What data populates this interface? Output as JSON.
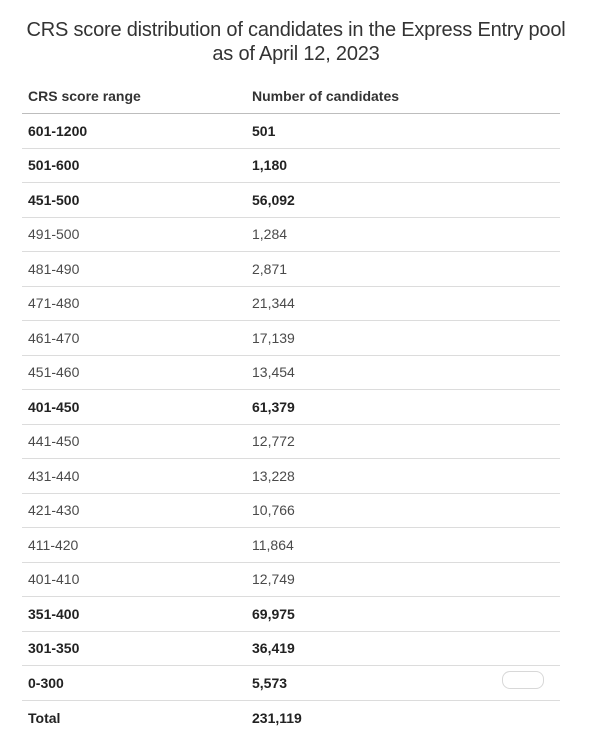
{
  "title": "CRS score distribution of candidates in the Express Entry pool as of April 12, 2023",
  "table": {
    "headers": {
      "range": "CRS score range",
      "count": "Number of candidates"
    },
    "rows": [
      {
        "range": "601-1200",
        "count": "501",
        "bold": true
      },
      {
        "range": "501-600",
        "count": "1,180",
        "bold": true
      },
      {
        "range": "451-500",
        "count": "56,092",
        "bold": true
      },
      {
        "range": "491-500",
        "count": "1,284",
        "bold": false
      },
      {
        "range": "481-490",
        "count": "2,871",
        "bold": false
      },
      {
        "range": "471-480",
        "count": "21,344",
        "bold": false
      },
      {
        "range": "461-470",
        "count": "17,139",
        "bold": false
      },
      {
        "range": "451-460",
        "count": "13,454",
        "bold": false
      },
      {
        "range": "401-450",
        "count": "61,379",
        "bold": true
      },
      {
        "range": "441-450",
        "count": "12,772",
        "bold": false
      },
      {
        "range": "431-440",
        "count": "13,228",
        "bold": false
      },
      {
        "range": "421-430",
        "count": "10,766",
        "bold": false
      },
      {
        "range": "411-420",
        "count": "11,864",
        "bold": false
      },
      {
        "range": "401-410",
        "count": "12,749",
        "bold": false
      },
      {
        "range": "351-400",
        "count": "69,975",
        "bold": true
      },
      {
        "range": "301-350",
        "count": "36,419",
        "bold": true
      },
      {
        "range": "0-300",
        "count": "5,573",
        "bold": true
      },
      {
        "range": "Total",
        "count": "231,119",
        "bold": true
      }
    ]
  }
}
